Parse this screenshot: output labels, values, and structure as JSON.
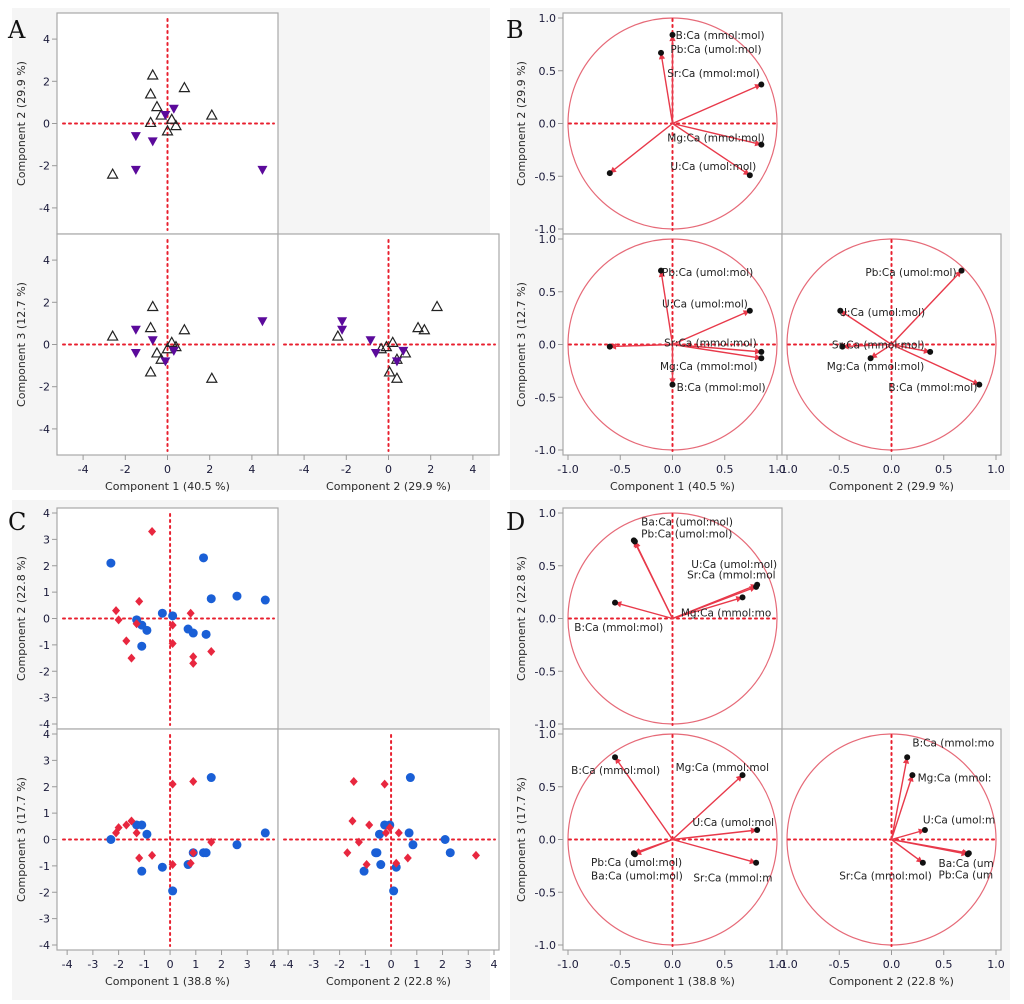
{
  "chart_data": [
    {
      "id": "A",
      "type": "scatter-matrix",
      "panel_label": "A",
      "variables": [
        "Component 1 (40.5 %)",
        "Component 2 (29.9 %)",
        "Component 3 (12.7 %)"
      ],
      "y_axis_labels": {
        "c2": "Component 2  (29.9 %)",
        "c3": "Component 3  (12.7 %)"
      },
      "x_axis_labels": {
        "c1": "Component 1  (40.5 %)",
        "c2": "Component 2  (29.9 %)"
      },
      "xlim": [
        -5,
        5
      ],
      "ylim": [
        -5,
        5
      ],
      "xticks": [
        "-4",
        "-2",
        "0",
        "2",
        "4"
      ],
      "yticks": [
        "-4",
        "-2",
        "0",
        "2",
        "4"
      ],
      "groups": [
        {
          "name": "group-open-triangle",
          "marker": "triangle-up-open",
          "color": "#222222",
          "points": [
            {
              "c1": -0.7,
              "c2": 2.3,
              "c3": 1.8
            },
            {
              "c1": -0.8,
              "c2": 1.4,
              "c3": 0.8
            },
            {
              "c1": 0.8,
              "c2": 1.7,
              "c3": 0.7
            },
            {
              "c1": -0.5,
              "c2": 0.8,
              "c3": -0.4
            },
            {
              "c1": -0.3,
              "c2": 0.4,
              "c3": -0.7
            },
            {
              "c1": -0.8,
              "c2": 0.05,
              "c3": -1.3
            },
            {
              "c1": 0.2,
              "c2": 0.2,
              "c3": 0.1
            },
            {
              "c1": 0.4,
              "c2": -0.1,
              "c3": -0.1
            },
            {
              "c1": 0.0,
              "c2": -0.35,
              "c3": -0.2
            },
            {
              "c1": 2.1,
              "c2": 0.4,
              "c3": -1.6
            },
            {
              "c1": -2.6,
              "c2": -2.4,
              "c3": 0.4
            }
          ]
        },
        {
          "name": "group-filled-down-triangle",
          "marker": "triangle-down-filled",
          "color": "#5b0a9b",
          "points": [
            {
              "c1": 0.3,
              "c2": 0.7,
              "c3": -0.3
            },
            {
              "c1": -0.1,
              "c2": 0.4,
              "c3": -0.8
            },
            {
              "c1": -1.5,
              "c2": -0.6,
              "c3": -0.4
            },
            {
              "c1": -0.7,
              "c2": -0.85,
              "c3": 0.2
            },
            {
              "c1": -1.5,
              "c2": -2.2,
              "c3": 0.7
            },
            {
              "c1": 4.5,
              "c2": -2.2,
              "c3": 1.1
            }
          ]
        }
      ]
    },
    {
      "id": "B",
      "type": "loading-plot-matrix",
      "panel_label": "B",
      "y_axis_labels": {
        "c2": "Component 2  (29.9 %)",
        "c3": "Component 3  (12.7 %)"
      },
      "x_axis_labels": {
        "c1": "Component 1  (40.5 %)",
        "c2": "Component 2  (29.9 %)"
      },
      "xlim": [
        -1,
        1
      ],
      "ylim": [
        -1,
        1
      ],
      "xticks": [
        "-1.0",
        "-0.5",
        "0.0",
        "0.5",
        "1.0"
      ],
      "yticks": [
        "-1.0",
        "-0.5",
        "0.0",
        "0.5",
        "1.0"
      ],
      "loadings": [
        {
          "name": "B:Ca (mmol:mol)",
          "c1": 0.0,
          "c2": 0.84,
          "c3": -0.38
        },
        {
          "name": "Pb:Ca (umol:mol)",
          "c1": -0.11,
          "c2": 0.67,
          "c3": 0.7
        },
        {
          "name": "Sr:Ca (mmol:mol)",
          "c1": 0.85,
          "c2": 0.37,
          "c3": -0.07
        },
        {
          "name": "Mg:Ca (mmol:mol)",
          "c1": 0.85,
          "c2": -0.2,
          "c3": -0.13
        },
        {
          "name": "U:Ca (umol:mol)",
          "c1": 0.74,
          "c2": -0.49,
          "c3": 0.32
        },
        {
          "name": "unlabeled",
          "c1": -0.6,
          "c2": -0.47,
          "c3": -0.02
        }
      ],
      "label_text": {
        "c1c2": [
          "B:Ca (mmol:mol)",
          "Pb:Ca (umol:mol)",
          "Sr:Ca (mmol:mol)",
          "Mg:Ca (mmol:mol)",
          "U:Ca (umol:mol)"
        ],
        "c1c3": [
          "Pb:Ca (umol:mol)",
          "U:Ca (umol:mol)",
          "Sr:Ca (mmol:mol)",
          "Mg:Ca (mmol:mol)",
          "B:Ca (mmol:mol)"
        ],
        "c2c3": [
          "Pb:Ca (umol:mol)",
          "U:Ca (umol:mol)",
          "Sr:Ca (mmol:mol)",
          "Mg:Ca (mmol:mol)",
          "B:Ca (mmol:mol)"
        ]
      }
    },
    {
      "id": "C",
      "type": "scatter-matrix",
      "panel_label": "C",
      "y_axis_labels": {
        "c2": "Component 2  (22.8 %)",
        "c3": "Component 3  (17.7 %)"
      },
      "x_axis_labels": {
        "c1": "Component 1  (38.8 %)",
        "c2": "Component 2  (22.8 %)"
      },
      "xlim": [
        -4.2,
        4.0
      ],
      "ylim": [
        -4,
        4
      ],
      "xticks": [
        "-4",
        "-3",
        "-2",
        "-1",
        "0",
        "1",
        "2",
        "3",
        "4"
      ],
      "yticks": [
        "-4",
        "-3",
        "-2",
        "-1",
        "0",
        "1",
        "2",
        "3",
        "4"
      ],
      "groups": [
        {
          "name": "group-blue-circle",
          "marker": "circle-filled",
          "color": "#1a5fd6",
          "points": [
            {
              "c1": -2.3,
              "c2": 2.1,
              "c3": 0.0
            },
            {
              "c1": 1.3,
              "c2": 2.3,
              "c3": -0.5
            },
            {
              "c1": 1.6,
              "c2": 0.75,
              "c3": 2.35
            },
            {
              "c1": 2.6,
              "c2": 0.85,
              "c3": -0.2
            },
            {
              "c1": 3.7,
              "c2": 0.7,
              "c3": 0.25
            },
            {
              "c1": -0.3,
              "c2": 0.2,
              "c3": -1.05
            },
            {
              "c1": 0.1,
              "c2": 0.1,
              "c3": -1.95
            },
            {
              "c1": -1.3,
              "c2": -0.05,
              "c3": 0.55
            },
            {
              "c1": -1.1,
              "c2": -0.25,
              "c3": 0.55
            },
            {
              "c1": -0.9,
              "c2": -0.45,
              "c3": 0.2
            },
            {
              "c1": 0.7,
              "c2": -0.4,
              "c3": -0.95
            },
            {
              "c1": 0.9,
              "c2": -0.55,
              "c3": -0.5
            },
            {
              "c1": 1.4,
              "c2": -0.6,
              "c3": -0.5
            },
            {
              "c1": -1.1,
              "c2": -1.05,
              "c3": -1.2
            }
          ]
        },
        {
          "name": "group-red-diamond",
          "marker": "diamond-filled",
          "color": "#e8273f",
          "points": [
            {
              "c1": -0.7,
              "c2": 3.3,
              "c3": -0.6
            },
            {
              "c1": -1.2,
              "c2": 0.65,
              "c3": -0.7
            },
            {
              "c1": -2.1,
              "c2": 0.3,
              "c3": 0.25
            },
            {
              "c1": -2.0,
              "c2": -0.05,
              "c3": 0.45
            },
            {
              "c1": -1.3,
              "c2": -0.2,
              "c3": 0.25
            },
            {
              "c1": 0.8,
              "c2": 0.2,
              "c3": -0.9
            },
            {
              "c1": 0.1,
              "c2": -0.25,
              "c3": 2.1
            },
            {
              "c1": 0.1,
              "c2": -0.95,
              "c3": -0.95
            },
            {
              "c1": -1.7,
              "c2": -0.85,
              "c3": 0.55
            },
            {
              "c1": -1.5,
              "c2": -1.5,
              "c3": 0.7
            },
            {
              "c1": 0.9,
              "c2": -1.45,
              "c3": 2.2
            },
            {
              "c1": 0.9,
              "c2": -1.7,
              "c3": -0.5
            },
            {
              "c1": 1.6,
              "c2": -1.25,
              "c3": -0.1
            }
          ]
        }
      ]
    },
    {
      "id": "D",
      "type": "loading-plot-matrix",
      "panel_label": "D",
      "y_axis_labels": {
        "c2": "Component 2  (22.8 %)",
        "c3": "Component 3  (17.7 %)"
      },
      "x_axis_labels": {
        "c1": "Component 1  (38.8 %)",
        "c2": "Component 2  (22.8 %)"
      },
      "xlim": [
        -1,
        1
      ],
      "ylim": [
        -1,
        1
      ],
      "xticks": [
        "-1.0",
        "-0.5",
        "0.0",
        "0.5",
        "1.0"
      ],
      "yticks": [
        "-1.0",
        "-0.5",
        "0.0",
        "0.5",
        "1.0"
      ],
      "loadings": [
        {
          "name": "Ba:Ca (umol:mol)",
          "c1": -0.37,
          "c2": 0.74,
          "c3": -0.13
        },
        {
          "name": "Pb:Ca (umol:mol)",
          "c1": -0.36,
          "c2": 0.73,
          "c3": -0.14
        },
        {
          "name": "U:Ca (umol:mol)",
          "c1": 0.81,
          "c2": 0.32,
          "c3": 0.09
        },
        {
          "name": "Sr:Ca (mmol:mol)",
          "c1": 0.8,
          "c2": 0.3,
          "c3": -0.22
        },
        {
          "name": "Mg:Ca (mmol:mol)",
          "c1": 0.67,
          "c2": 0.2,
          "c3": 0.61
        },
        {
          "name": "B:Ca (mmol:mol)",
          "c1": -0.55,
          "c2": 0.15,
          "c3": 0.78
        }
      ],
      "label_text": {
        "c1c2": [
          "Ba:Ca (umol:mol)",
          "Pb:Ca (umol:mol)",
          "U:Ca (umol:mol)",
          "Sr:Ca (mmol:mol",
          "Mg:Ca (mmol:mo",
          "B:Ca (mmol:mol)"
        ],
        "c1c3": [
          "B:Ca (mmol:mol)",
          "Mg:Ca (mmol:mol",
          "U:Ca (umol:mol",
          "Pb:Ca (umol:mol)",
          "Ba:Ca (umol:mol)",
          "Sr:Ca (mmol:m"
        ],
        "c2c3": [
          "B:Ca (mmol:mo",
          "Mg:Ca (mmol:",
          "U:Ca (umol:m",
          "Sr:Ca (mmol:mol)",
          "Ba:Ca (um",
          "Pb:Ca (um"
        ]
      }
    }
  ]
}
